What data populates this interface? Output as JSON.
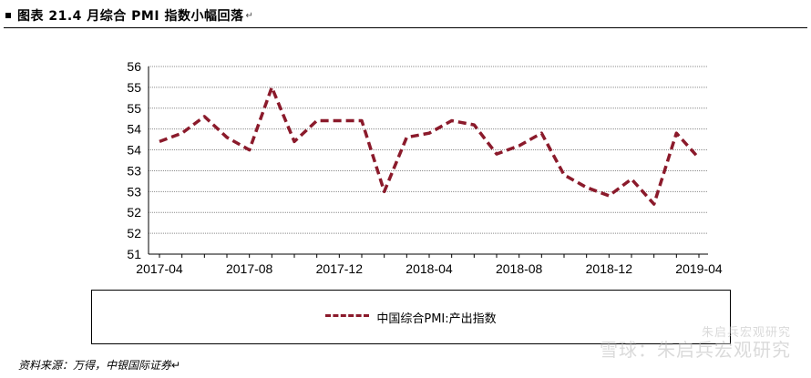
{
  "header": {
    "title": "图表 21.4 月综合 PMI 指数小幅回落",
    "return_mark": "↵"
  },
  "chart_data": {
    "type": "line",
    "title": "",
    "xlabel": "",
    "ylabel": "",
    "x": [
      "2017-04",
      "2017-05",
      "2017-06",
      "2017-07",
      "2017-08",
      "2017-09",
      "2017-10",
      "2017-11",
      "2017-12",
      "2018-01",
      "2018-02",
      "2018-03",
      "2018-04",
      "2018-05",
      "2018-06",
      "2018-07",
      "2018-08",
      "2018-09",
      "2018-10",
      "2018-11",
      "2018-12",
      "2019-01",
      "2019-02",
      "2019-03",
      "2019-04"
    ],
    "x_tick_labels": [
      "2017-04",
      "2017-08",
      "2017-12",
      "2018-04",
      "2018-08",
      "2018-12",
      "2019-04"
    ],
    "y_tick_labels": [
      "51",
      "52",
      "52",
      "53",
      "53",
      "54",
      "54",
      "55",
      "55",
      "56"
    ],
    "ylim": [
      51,
      55.5
    ],
    "grid": true,
    "series": [
      {
        "name": "中国综合PMI:产出指数",
        "color": "#8b1a2b",
        "style": "dashed",
        "values": [
          53.7,
          53.9,
          54.3,
          53.8,
          53.5,
          55.0,
          53.7,
          54.2,
          54.2,
          54.2,
          52.5,
          53.8,
          53.9,
          54.2,
          54.1,
          53.4,
          53.6,
          53.9,
          52.9,
          52.6,
          52.4,
          52.8,
          52.2,
          53.9,
          53.3
        ]
      }
    ]
  },
  "legend": {
    "label": "中国综合PMI:产出指数"
  },
  "source": {
    "text": "资料来源：万得，中银国际证券↵"
  },
  "watermark": {
    "main": "雪球：朱启兵宏观研究",
    "sub": "朱启兵宏观研究"
  }
}
